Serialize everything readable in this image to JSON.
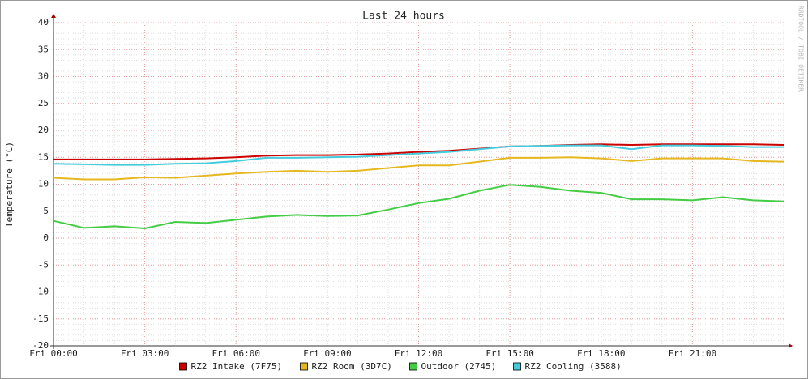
{
  "chart_data": {
    "type": "line",
    "title": "Last 24 hours",
    "y_label": "Temperature (°C)",
    "watermark": "RRDTOOL / TOBI OETIKER",
    "x": [
      0,
      1,
      2,
      3,
      4,
      5,
      6,
      7,
      8,
      9,
      10,
      11,
      12,
      13,
      14,
      15,
      16,
      17,
      18,
      19,
      20,
      21,
      22,
      23,
      24
    ],
    "xlim": [
      0,
      24
    ],
    "xticks": [
      {
        "value": 0,
        "label": "Fri 00:00"
      },
      {
        "value": 3,
        "label": "Fri 03:00"
      },
      {
        "value": 6,
        "label": "Fri 06:00"
      },
      {
        "value": 9,
        "label": "Fri 09:00"
      },
      {
        "value": 12,
        "label": "Fri 12:00"
      },
      {
        "value": 15,
        "label": "Fri 15:00"
      },
      {
        "value": 18,
        "label": "Fri 18:00"
      },
      {
        "value": 21,
        "label": "Fri 21:00"
      }
    ],
    "ylim": [
      -20,
      40
    ],
    "yticks": [
      -20,
      -15,
      -10,
      -5,
      0,
      5,
      10,
      15,
      20,
      25,
      30,
      35,
      40
    ],
    "grid": true,
    "legend": "bottom",
    "series": [
      {
        "name": "RZ2 Intake (7F75)",
        "color": "#cc0000",
        "values": [
          14.6,
          14.6,
          14.6,
          14.6,
          14.7,
          14.8,
          15.0,
          15.3,
          15.4,
          15.4,
          15.5,
          15.7,
          16.0,
          16.2,
          16.6,
          17.0,
          17.1,
          17.3,
          17.4,
          17.3,
          17.4,
          17.4,
          17.4,
          17.4,
          17.3
        ]
      },
      {
        "name": "RZ2 Room (3D7C)",
        "color": "#e6b820",
        "values": [
          11.2,
          10.9,
          10.9,
          11.3,
          11.2,
          11.6,
          12.0,
          12.3,
          12.5,
          12.3,
          12.5,
          13.0,
          13.5,
          13.5,
          14.2,
          14.9,
          14.9,
          15.0,
          14.8,
          14.3,
          14.8,
          14.8,
          14.8,
          14.3,
          14.2
        ]
      },
      {
        "name": "Outdoor (2745)",
        "color": "#44cc44",
        "values": [
          3.2,
          1.9,
          2.2,
          1.8,
          3.0,
          2.8,
          3.4,
          4.0,
          4.3,
          4.1,
          4.2,
          5.3,
          6.5,
          7.3,
          8.8,
          9.9,
          9.5,
          8.8,
          8.4,
          7.2,
          7.2,
          7.0,
          7.6,
          7.0,
          6.8
        ]
      },
      {
        "name": "RZ2 Cooling (3588)",
        "color": "#44ccdd",
        "values": [
          13.8,
          13.7,
          13.6,
          13.6,
          13.8,
          13.9,
          14.3,
          14.9,
          14.9,
          15.0,
          15.1,
          15.4,
          15.7,
          16.0,
          16.5,
          17.0,
          17.1,
          17.2,
          17.2,
          16.5,
          17.2,
          17.2,
          17.1,
          16.9,
          16.9
        ]
      }
    ]
  }
}
